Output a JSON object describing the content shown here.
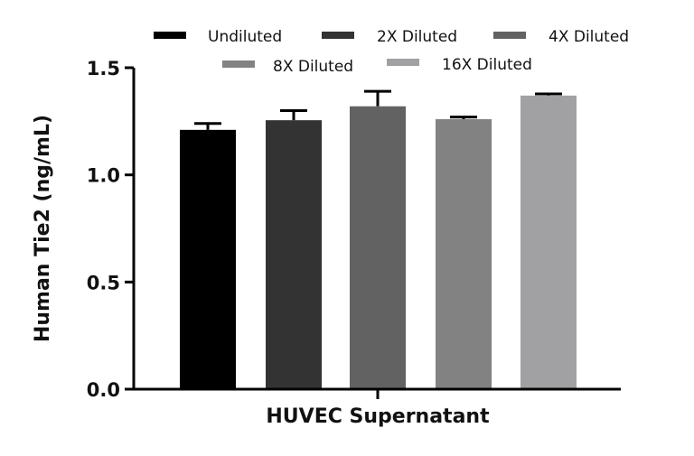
{
  "chart_data": {
    "type": "bar",
    "title": "",
    "xlabel": "HUVEC Supernatant",
    "ylabel": "Human Tie2 (ng/mL)",
    "ylim": [
      0,
      1.5
    ],
    "yticks": [
      "0.0",
      "0.5",
      "1.0",
      "1.5"
    ],
    "grid": false,
    "legend_position": "top",
    "categories": [
      "HUVEC Supernatant"
    ],
    "series": [
      {
        "name": "Undiluted",
        "values": [
          1.21
        ],
        "error": [
          0.03
        ],
        "color": "#000000"
      },
      {
        "name": "2X Diluted",
        "values": [
          1.255
        ],
        "error": [
          0.045
        ],
        "color": "#333333"
      },
      {
        "name": "4X Diluted",
        "values": [
          1.32
        ],
        "error": [
          0.07
        ],
        "color": "#626262"
      },
      {
        "name": "8X Diluted",
        "values": [
          1.26
        ],
        "error": [
          0.01
        ],
        "color": "#828282"
      },
      {
        "name": "16X Diluted",
        "values": [
          1.37
        ],
        "error": [
          0.008
        ],
        "color": "#a1a1a3"
      }
    ]
  }
}
